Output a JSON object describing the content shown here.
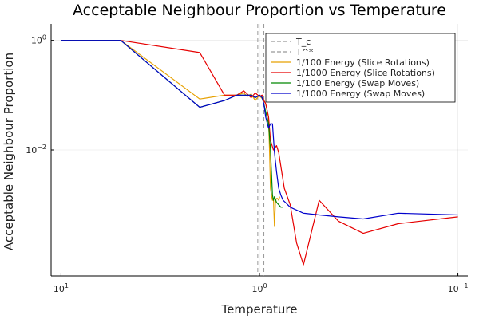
{
  "chart_data": {
    "type": "line",
    "title": "Acceptable Neighbour Proportion vs Temperature",
    "xlabel": "Temperature",
    "ylabel": "Acceptable Neighbour Proportion",
    "x_scale": "log",
    "y_scale": "log",
    "x_reversed": true,
    "xlim": [
      10,
      0.1
    ],
    "ylim": [
      5e-05,
      2
    ],
    "grid": true,
    "legend_position": "top-right",
    "x_ticks": [
      {
        "value": 10,
        "base": "10",
        "exp": "1"
      },
      {
        "value": 1,
        "base": "10",
        "exp": "0"
      },
      {
        "value": 0.1,
        "base": "10",
        "exp": "−1"
      }
    ],
    "y_ticks": [
      {
        "value": 1,
        "base": "10",
        "exp": "0"
      },
      {
        "value": 0.01,
        "base": "10",
        "exp": "−2"
      }
    ],
    "vlines": [
      {
        "name": "T_c",
        "x": 1.02,
        "color": "#999999"
      },
      {
        "name": "T^*",
        "x": 0.95,
        "color": "#999999"
      }
    ],
    "series": [
      {
        "name": "1/100 Energy (Slice Rotations)",
        "color": "#e6a000",
        "x": [
          10,
          5,
          2,
          1.5,
          1.3,
          1.2,
          1.15,
          1.1,
          1.05,
          1.0,
          0.98,
          0.95,
          0.93,
          0.9,
          0.89,
          0.88,
          0.87,
          0.86,
          0.85,
          0.84,
          0.83,
          0.82,
          0.81,
          0.8,
          0.79
        ],
        "y": [
          1.0,
          1.0,
          0.085,
          0.1,
          0.1,
          0.11,
          0.095,
          0.105,
          0.08,
          0.1,
          0.09,
          0.08,
          0.07,
          0.04,
          0.01,
          0.002,
          0.0015,
          0.0012,
          0.0013,
          0.0004,
          0.0012,
          0.0013,
          0.0013,
          0.0012,
          0.0014
        ]
      },
      {
        "name": "1/1000 Energy (Slice Rotations)",
        "color": "#e60000",
        "x": [
          10,
          5,
          2,
          1.5,
          1.3,
          1.2,
          1.1,
          1.05,
          1.0,
          0.97,
          0.95,
          0.93,
          0.9,
          0.88,
          0.85,
          0.82,
          0.8,
          0.75,
          0.7,
          0.65,
          0.6,
          0.5,
          0.4,
          0.3,
          0.2,
          0.1
        ],
        "y": [
          1.0,
          1.0,
          0.6,
          0.1,
          0.1,
          0.12,
          0.09,
          0.11,
          0.095,
          0.1,
          0.08,
          0.07,
          0.04,
          0.015,
          0.01,
          0.012,
          0.009,
          0.002,
          0.001,
          0.0002,
          8e-05,
          0.0012,
          0.0005,
          0.0003,
          0.00045,
          0.0006
        ]
      },
      {
        "name": "1/100 Energy (Swap Moves)",
        "color": "#008800",
        "x": [
          10,
          5,
          2,
          1.5,
          1.3,
          1.2,
          1.1,
          1.05,
          1.0,
          0.97,
          0.95,
          0.93,
          0.9,
          0.88,
          0.87,
          0.86,
          0.85,
          0.84,
          0.82,
          0.8,
          0.78,
          0.76
        ],
        "y": [
          1.0,
          1.0,
          0.06,
          0.08,
          0.1,
          0.1,
          0.1,
          0.09,
          0.1,
          0.09,
          0.07,
          0.05,
          0.03,
          0.01,
          0.004,
          0.0015,
          0.0012,
          0.0014,
          0.0011,
          0.001,
          0.0009,
          0.0009
        ]
      },
      {
        "name": "1/1000 Energy (Swap Moves)",
        "color": "#0000cc",
        "x": [
          10,
          5,
          2,
          1.5,
          1.3,
          1.2,
          1.1,
          1.05,
          1.0,
          0.97,
          0.95,
          0.93,
          0.9,
          0.88,
          0.86,
          0.84,
          0.82,
          0.8,
          0.78,
          0.76,
          0.74,
          0.7,
          0.6,
          0.5,
          0.4,
          0.3,
          0.2,
          0.1
        ],
        "y": [
          1.0,
          1.0,
          0.06,
          0.08,
          0.1,
          0.1,
          0.1,
          0.09,
          0.1,
          0.09,
          0.07,
          0.04,
          0.025,
          0.03,
          0.03,
          0.009,
          0.004,
          0.002,
          0.0015,
          0.0012,
          0.0011,
          0.0009,
          0.0007,
          0.00065,
          0.0006,
          0.00055,
          0.0007,
          0.00065
        ]
      }
    ]
  }
}
